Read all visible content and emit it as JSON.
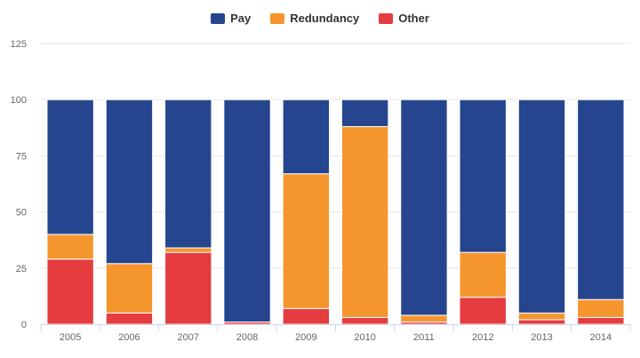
{
  "chart_data": {
    "type": "bar",
    "stacked": true,
    "categories": [
      "2005",
      "2006",
      "2007",
      "2008",
      "2009",
      "2010",
      "2011",
      "2012",
      "2013",
      "2014"
    ],
    "series": [
      {
        "name": "Pay",
        "color": "#26458f",
        "values": [
          60,
          73,
          66,
          99,
          33,
          12,
          96,
          68,
          95,
          89
        ]
      },
      {
        "name": "Redundancy",
        "color": "#f5952e",
        "values": [
          11,
          22,
          2,
          0,
          60,
          85,
          3,
          20,
          3,
          8
        ]
      },
      {
        "name": "Other",
        "color": "#e53c3f",
        "values": [
          29,
          5,
          32,
          1,
          7,
          3,
          1,
          12,
          2,
          3
        ]
      }
    ],
    "yticks": [
      0,
      25,
      50,
      75,
      100,
      125
    ],
    "ylim": [
      0,
      125
    ],
    "grid": true,
    "legend_position": "top-center",
    "title": "",
    "xlabel": "",
    "ylabel": ""
  }
}
